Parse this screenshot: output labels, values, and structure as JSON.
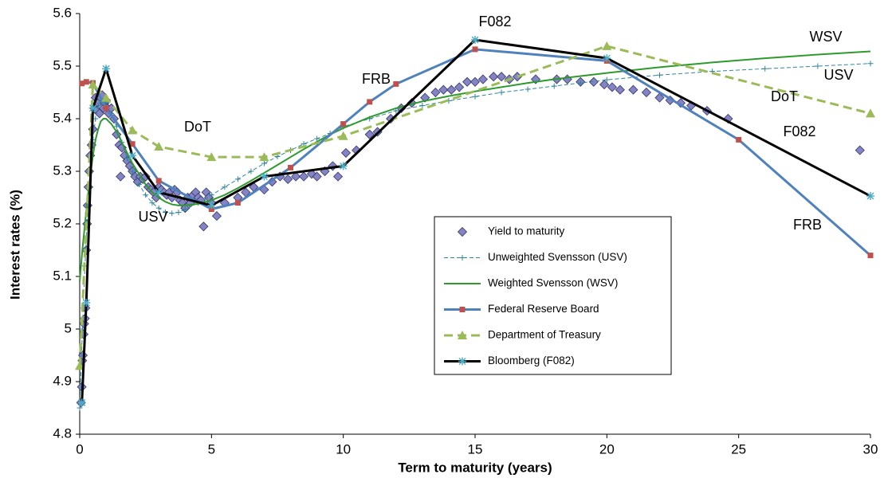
{
  "chart_data": {
    "type": "line",
    "x_label": "Term to maturity (years)",
    "y_label": "Interest rates (%)",
    "xlim": [
      0,
      30
    ],
    "xticks": [
      0,
      5,
      10,
      15,
      20,
      25,
      30
    ],
    "ylim": [
      4.8,
      5.6
    ],
    "yticks": [
      4.8,
      4.9,
      5,
      5.1,
      5.2,
      5.3,
      5.4,
      5.5,
      5.6
    ],
    "grid": false,
    "legend": "center",
    "series": [
      {
        "name": "Yield to maturity",
        "line": "none",
        "marker": "diamond",
        "color": "#33336b",
        "marker_color": "#8484c4",
        "x": [
          0.05,
          0.08,
          0.1,
          0.12,
          0.15,
          0.17,
          0.2,
          0.22,
          0.25,
          0.28,
          0.3,
          0.33,
          0.36,
          0.4,
          0.45,
          0.5,
          0.55,
          0.6,
          0.65,
          0.7,
          0.75,
          0.8,
          0.85,
          0.9,
          0.95,
          1.0,
          1.05,
          1.1,
          1.2,
          1.3,
          1.4,
          1.5,
          1.6,
          1.7,
          1.8,
          1.9,
          2.0,
          1.55,
          2.1,
          2.2,
          2.3,
          2.4,
          2.5,
          2.6,
          2.7,
          2.8,
          2.9,
          3.0,
          3.1,
          3.2,
          3.3,
          3.4,
          3.5,
          3.6,
          3.7,
          3.8,
          3.9,
          4.0,
          4.1,
          4.2,
          4.3,
          4.4,
          4.5,
          4.6,
          4.7,
          4.8,
          4.9,
          5.0,
          5.2,
          5.5,
          6.0,
          6.3,
          6.6,
          7.0,
          7.3,
          7.6,
          7.9,
          8.2,
          8.5,
          8.8,
          9.0,
          9.3,
          9.6,
          9.8,
          10.1,
          10.5,
          11.0,
          11.3,
          11.8,
          12.2,
          12.6,
          13.1,
          13.5,
          13.8,
          14.1,
          14.4,
          14.7,
          15.0,
          15.3,
          15.7,
          16.0,
          16.3,
          16.6,
          17.3,
          18.1,
          18.5,
          19.0,
          19.5,
          19.9,
          20.2,
          20.5,
          21.0,
          21.5,
          22.0,
          22.4,
          22.8,
          23.2,
          23.8,
          24.6,
          29.6
        ],
        "values": [
          4.86,
          4.89,
          4.94,
          4.95,
          4.99,
          5.01,
          5.02,
          5.04,
          5.15,
          5.2,
          5.235,
          5.27,
          5.3,
          5.33,
          5.35,
          5.38,
          5.42,
          5.44,
          5.415,
          5.43,
          5.41,
          5.44,
          5.445,
          5.42,
          5.43,
          5.435,
          5.42,
          5.41,
          5.42,
          5.4,
          5.37,
          5.35,
          5.345,
          5.33,
          5.32,
          5.31,
          5.3,
          5.29,
          5.29,
          5.28,
          5.29,
          5.285,
          5.29,
          5.27,
          5.265,
          5.26,
          5.25,
          5.27,
          5.265,
          5.26,
          5.255,
          5.26,
          5.25,
          5.265,
          5.26,
          5.245,
          5.24,
          5.23,
          5.25,
          5.24,
          5.255,
          5.26,
          5.25,
          5.245,
          5.195,
          5.26,
          5.25,
          5.24,
          5.215,
          5.24,
          5.25,
          5.26,
          5.27,
          5.265,
          5.28,
          5.29,
          5.285,
          5.29,
          5.29,
          5.295,
          5.29,
          5.3,
          5.31,
          5.29,
          5.335,
          5.34,
          5.37,
          5.375,
          5.4,
          5.42,
          5.43,
          5.44,
          5.45,
          5.455,
          5.455,
          5.46,
          5.47,
          5.47,
          5.475,
          5.48,
          5.48,
          5.475,
          5.48,
          5.475,
          5.475,
          5.475,
          5.47,
          5.47,
          5.465,
          5.46,
          5.455,
          5.455,
          5.45,
          5.44,
          5.435,
          5.43,
          5.425,
          5.415,
          5.4,
          5.34
        ]
      },
      {
        "name": "Unweighted Svensson (USV)",
        "line": "dashed",
        "marker": "plus",
        "color": "#31859c",
        "marker_color": "#31859c",
        "x": [
          0,
          0.1,
          0.2,
          0.3,
          0.4,
          0.5,
          0.6,
          0.7,
          0.8,
          0.9,
          1,
          1.2,
          1.4,
          1.6,
          1.8,
          2,
          2.25,
          2.5,
          2.75,
          3,
          3.25,
          3.5,
          3.75,
          4,
          4.5,
          5,
          5.5,
          6,
          6.5,
          7,
          7.5,
          8,
          8.5,
          9,
          9.5,
          10,
          11,
          12,
          13,
          14,
          15,
          16,
          17,
          18,
          19,
          20,
          22,
          24,
          26,
          28,
          30
        ],
        "values": [
          4.85,
          5.0,
          5.12,
          5.22,
          5.3,
          5.36,
          5.4,
          5.425,
          5.435,
          5.435,
          5.43,
          5.41,
          5.385,
          5.355,
          5.325,
          5.3,
          5.275,
          5.255,
          5.24,
          5.23,
          5.222,
          5.22,
          5.222,
          5.228,
          5.24,
          5.255,
          5.27,
          5.285,
          5.3,
          5.315,
          5.328,
          5.34,
          5.352,
          5.362,
          5.372,
          5.385,
          5.4,
          5.415,
          5.425,
          5.434,
          5.442,
          5.45,
          5.456,
          5.462,
          5.468,
          5.474,
          5.483,
          5.49,
          5.495,
          5.5,
          5.505
        ]
      },
      {
        "name": "Weighted Svensson (WSV)",
        "line": "solid",
        "marker": "none",
        "color": "#2e9a2e",
        "x": [
          0,
          0.1,
          0.2,
          0.3,
          0.4,
          0.5,
          0.6,
          0.7,
          0.8,
          0.9,
          1,
          1.2,
          1.4,
          1.6,
          1.8,
          2,
          2.25,
          2.5,
          2.75,
          3,
          3.25,
          3.5,
          3.75,
          4,
          4.5,
          5,
          5.5,
          6,
          6.5,
          7,
          7.5,
          8,
          8.5,
          9,
          9.5,
          10,
          11,
          12,
          13,
          14,
          15,
          16,
          17,
          18,
          19,
          20,
          22,
          24,
          26,
          28,
          30
        ],
        "values": [
          5.09,
          5.15,
          5.2,
          5.25,
          5.29,
          5.33,
          5.36,
          5.38,
          5.395,
          5.4,
          5.4,
          5.39,
          5.375,
          5.355,
          5.335,
          5.315,
          5.295,
          5.275,
          5.26,
          5.25,
          5.242,
          5.237,
          5.235,
          5.235,
          5.238,
          5.245,
          5.255,
          5.268,
          5.282,
          5.297,
          5.312,
          5.327,
          5.342,
          5.356,
          5.37,
          5.382,
          5.403,
          5.42,
          5.433,
          5.443,
          5.452,
          5.46,
          5.468,
          5.475,
          5.481,
          5.487,
          5.498,
          5.507,
          5.515,
          5.522,
          5.528
        ]
      },
      {
        "name": "Federal Reserve Board",
        "line": "solid",
        "marker": "square",
        "color": "#4f81bd",
        "marker_color": "#c0504d",
        "x": [
          0.083,
          0.25,
          0.5,
          1,
          2,
          3,
          5,
          6,
          8,
          10,
          11,
          12,
          15,
          20,
          25,
          30
        ],
        "values": [
          5.467,
          5.47,
          5.468,
          5.42,
          5.352,
          5.282,
          5.228,
          5.24,
          5.307,
          5.39,
          5.432,
          5.466,
          5.532,
          5.51,
          5.36,
          5.14
        ]
      },
      {
        "name": "Department of Treasury",
        "line": "dashed",
        "marker": "triangle",
        "color": "#9bbb59",
        "marker_color": "#9bbb59",
        "x": [
          0,
          0.5,
          1,
          2,
          3,
          5,
          7,
          10,
          20,
          30
        ],
        "values": [
          4.93,
          5.465,
          5.44,
          5.378,
          5.347,
          5.327,
          5.327,
          5.367,
          5.538,
          5.41
        ]
      },
      {
        "name": "Bloomberg (F082)",
        "line": "solid",
        "marker": "asterisk",
        "color": "#000000",
        "marker_color": "#4bacc6",
        "x": [
          0.083,
          0.25,
          0.5,
          1,
          2,
          3,
          5,
          7,
          10,
          15,
          20,
          30
        ],
        "values": [
          4.86,
          5.05,
          5.42,
          5.495,
          5.33,
          5.26,
          5.235,
          5.29,
          5.31,
          5.55,
          5.515,
          5.253
        ]
      }
    ],
    "annotations": [
      "DoT",
      "USV",
      "FRB",
      "F082",
      "WSV",
      "USV",
      "DoT",
      "F082",
      "FRB"
    ]
  }
}
